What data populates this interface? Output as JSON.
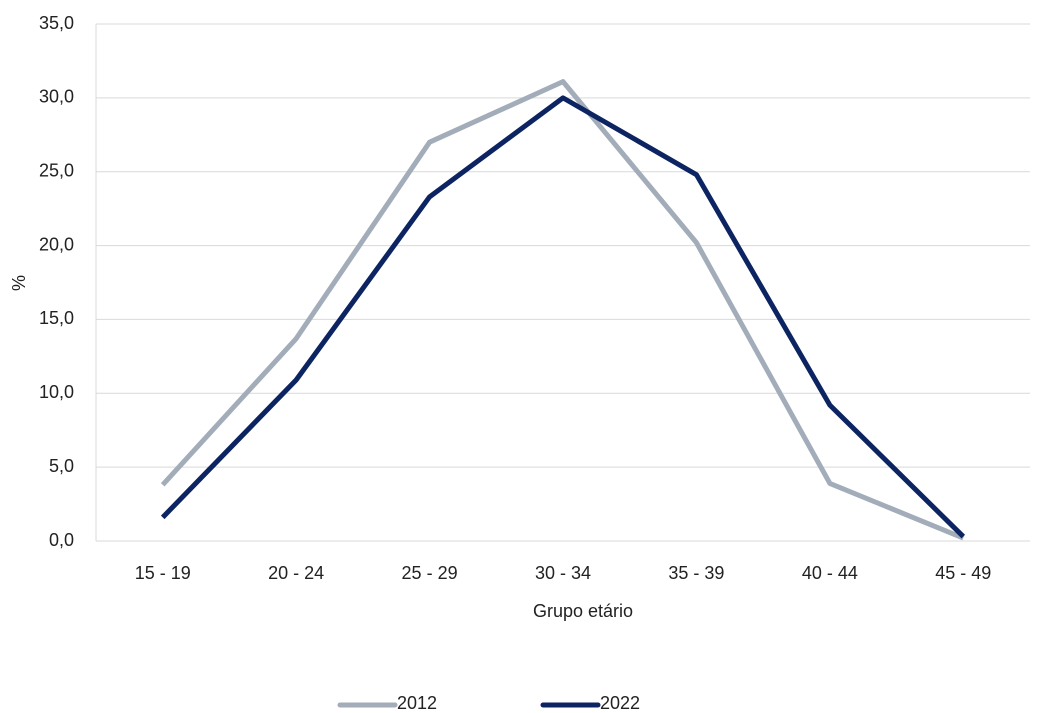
{
  "chart_data": {
    "type": "line",
    "x_label": "Grupo etário",
    "y_label": "%",
    "categories": [
      "15 - 19",
      "20 - 24",
      "25 - 29",
      "30 - 34",
      "35 - 39",
      "40 - 44",
      "45 - 49"
    ],
    "series": [
      {
        "name": "2012",
        "color": "#a2adb9",
        "values": [
          3.8,
          13.7,
          27.0,
          31.1,
          20.2,
          3.9,
          0.2
        ]
      },
      {
        "name": "2022",
        "color": "#0c2461",
        "values": [
          1.6,
          10.9,
          23.3,
          30.0,
          24.8,
          9.2,
          0.3
        ]
      }
    ],
    "ylim": [
      0,
      35
    ],
    "yticks": [
      {
        "value": 0,
        "label": "0,0"
      },
      {
        "value": 5,
        "label": "5,0"
      },
      {
        "value": 10,
        "label": "10,0"
      },
      {
        "value": 15,
        "label": "15,0"
      },
      {
        "value": 20,
        "label": "20,0"
      },
      {
        "value": 25,
        "label": "25,0"
      },
      {
        "value": 30,
        "label": "30,0"
      },
      {
        "value": 35,
        "label": "35,0"
      }
    ],
    "grid": true,
    "legend": "bottom"
  }
}
